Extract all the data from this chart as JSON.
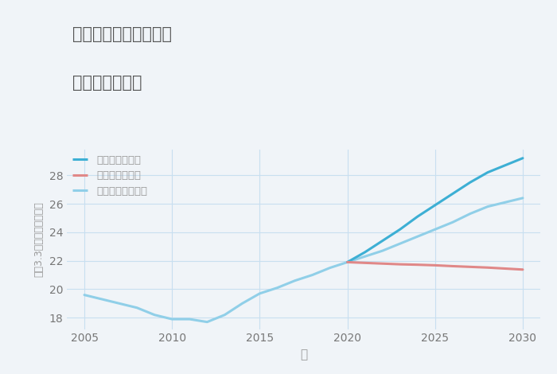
{
  "title_line1": "愛知県一宮市佐千原の",
  "title_line2": "土地の価格推移",
  "xlabel": "年",
  "ylabel": "平（3.3㎡）単価（万円）",
  "background_color": "#f0f4f8",
  "plot_background": "#f0f4f8",
  "xlim": [
    2004,
    2031
  ],
  "ylim": [
    17.2,
    29.8
  ],
  "yticks": [
    18,
    20,
    22,
    24,
    26,
    28
  ],
  "xticks": [
    2005,
    2010,
    2015,
    2020,
    2025,
    2030
  ],
  "normal_x": [
    2005,
    2006,
    2007,
    2008,
    2009,
    2010,
    2011,
    2012,
    2013,
    2014,
    2015,
    2016,
    2017,
    2018,
    2019,
    2020
  ],
  "normal_y": [
    19.6,
    19.3,
    19.0,
    18.7,
    18.2,
    17.9,
    17.9,
    17.7,
    18.2,
    19.0,
    19.7,
    20.1,
    20.6,
    21.0,
    21.5,
    21.9
  ],
  "good_x": [
    2020,
    2021,
    2022,
    2023,
    2024,
    2025,
    2026,
    2027,
    2028,
    2029,
    2030
  ],
  "good_y": [
    21.9,
    22.6,
    23.4,
    24.2,
    25.1,
    25.9,
    26.7,
    27.5,
    28.2,
    28.7,
    29.2
  ],
  "bad_x": [
    2020,
    2021,
    2022,
    2023,
    2024,
    2025,
    2026,
    2027,
    2028,
    2029,
    2030
  ],
  "bad_y": [
    21.9,
    21.85,
    21.8,
    21.75,
    21.72,
    21.68,
    21.62,
    21.57,
    21.52,
    21.45,
    21.38
  ],
  "normalfuture_x": [
    2020,
    2021,
    2022,
    2023,
    2024,
    2025,
    2026,
    2027,
    2028,
    2029,
    2030
  ],
  "normalfuture_y": [
    21.9,
    22.3,
    22.7,
    23.2,
    23.7,
    24.2,
    24.7,
    25.3,
    25.8,
    26.1,
    26.4
  ],
  "color_normal": "#90cfe8",
  "color_good": "#3dafd4",
  "color_bad": "#e08888",
  "color_normalfuture": "#90cfe8",
  "legend_labels": [
    "グッドシナリオ",
    "バッドシナリオ",
    "ノーマルシナリオ"
  ],
  "legend_colors": [
    "#3dafd4",
    "#e08888",
    "#90cfe8"
  ],
  "title_color": "#555555",
  "axis_color": "#999999",
  "tick_color": "#777777",
  "grid_color": "#c8dff0"
}
